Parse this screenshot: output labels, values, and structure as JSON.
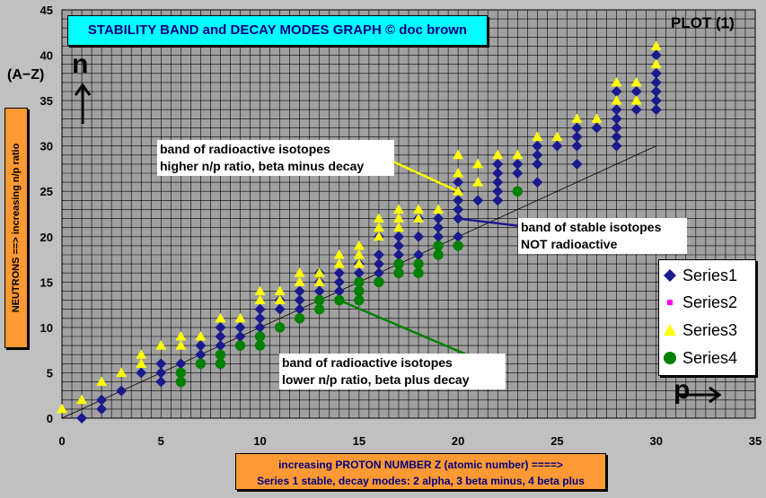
{
  "chart_data": {
    "type": "scatter",
    "title": "STABILITY BAND and DECAY MODES GRAPH  © doc brown",
    "plot_label": "PLOT (1)",
    "xlabel": [
      "increasing PROTON NUMBER Z (atomic number) ====>",
      "Series 1 stable, decay modes: 2 alpha, 3 beta minus, 4 beta plus"
    ],
    "ylabel": "NEUTRONS ==> increasing n/p ratio",
    "y_axis_symbol": "n",
    "y_axis_extra": "(A−Z)",
    "x_axis_symbol": "p",
    "xlim": [
      0,
      35
    ],
    "ylim": [
      0,
      45
    ],
    "x_ticks": [
      0,
      5,
      10,
      15,
      20,
      25,
      30,
      35
    ],
    "y_ticks": [
      0,
      5,
      10,
      15,
      20,
      25,
      30,
      35,
      40,
      45
    ],
    "grid": true,
    "legend_position": "bottom-right",
    "series": [
      {
        "name": "Series1",
        "marker": "diamond",
        "color": "#1a1a8c",
        "points": [
          [
            1,
            0
          ],
          [
            2,
            1
          ],
          [
            2,
            2
          ],
          [
            3,
            3
          ],
          [
            4,
            5
          ],
          [
            5,
            4
          ],
          [
            5,
            5
          ],
          [
            5,
            6
          ],
          [
            6,
            6
          ],
          [
            7,
            7
          ],
          [
            7,
            8
          ],
          [
            8,
            8
          ],
          [
            8,
            9
          ],
          [
            8,
            10
          ],
          [
            9,
            9
          ],
          [
            9,
            10
          ],
          [
            10,
            10
          ],
          [
            10,
            11
          ],
          [
            10,
            12
          ],
          [
            11,
            12
          ],
          [
            11,
            13
          ],
          [
            12,
            12
          ],
          [
            12,
            13
          ],
          [
            12,
            14
          ],
          [
            13,
            14
          ],
          [
            13,
            15
          ],
          [
            13,
            16
          ],
          [
            14,
            14
          ],
          [
            14,
            15
          ],
          [
            14,
            16
          ],
          [
            15,
            16
          ],
          [
            15,
            17
          ],
          [
            16,
            16
          ],
          [
            16,
            17
          ],
          [
            16,
            18
          ],
          [
            16,
            20
          ],
          [
            17,
            18
          ],
          [
            17,
            19
          ],
          [
            17,
            20
          ],
          [
            18,
            18
          ],
          [
            18,
            20
          ],
          [
            18,
            22
          ],
          [
            19,
            20
          ],
          [
            19,
            21
          ],
          [
            19,
            22
          ],
          [
            20,
            20
          ],
          [
            20,
            22
          ],
          [
            20,
            23
          ],
          [
            20,
            24
          ],
          [
            20,
            25
          ],
          [
            20,
            26
          ],
          [
            21,
            24
          ],
          [
            22,
            24
          ],
          [
            22,
            25
          ],
          [
            22,
            26
          ],
          [
            22,
            27
          ],
          [
            22,
            28
          ],
          [
            23,
            27
          ],
          [
            23,
            28
          ],
          [
            24,
            26
          ],
          [
            24,
            28
          ],
          [
            24,
            29
          ],
          [
            24,
            30
          ],
          [
            25,
            30
          ],
          [
            26,
            28
          ],
          [
            26,
            30
          ],
          [
            26,
            31
          ],
          [
            26,
            32
          ],
          [
            27,
            32
          ],
          [
            28,
            30
          ],
          [
            28,
            31
          ],
          [
            28,
            32
          ],
          [
            28,
            33
          ],
          [
            28,
            34
          ],
          [
            28,
            36
          ],
          [
            29,
            34
          ],
          [
            29,
            36
          ],
          [
            30,
            34
          ],
          [
            30,
            35
          ],
          [
            30,
            36
          ],
          [
            30,
            37
          ],
          [
            30,
            38
          ],
          [
            30,
            40
          ]
        ]
      },
      {
        "name": "Series2",
        "marker": "square",
        "color": "#ff00ff",
        "points": []
      },
      {
        "name": "Series3",
        "marker": "triangle",
        "color": "#ffff00",
        "points": [
          [
            0,
            1
          ],
          [
            1,
            2
          ],
          [
            2,
            4
          ],
          [
            3,
            5
          ],
          [
            4,
            6
          ],
          [
            4,
            7
          ],
          [
            5,
            8
          ],
          [
            6,
            8
          ],
          [
            6,
            9
          ],
          [
            7,
            9
          ],
          [
            8,
            11
          ],
          [
            9,
            11
          ],
          [
            10,
            13
          ],
          [
            10,
            14
          ],
          [
            11,
            13
          ],
          [
            11,
            14
          ],
          [
            12,
            15
          ],
          [
            12,
            16
          ],
          [
            13,
            15
          ],
          [
            13,
            16
          ],
          [
            14,
            17
          ],
          [
            14,
            18
          ],
          [
            15,
            17
          ],
          [
            15,
            18
          ],
          [
            15,
            19
          ],
          [
            16,
            20
          ],
          [
            16,
            21
          ],
          [
            16,
            22
          ],
          [
            17,
            21
          ],
          [
            17,
            22
          ],
          [
            17,
            23
          ],
          [
            18,
            22
          ],
          [
            18,
            23
          ],
          [
            19,
            23
          ],
          [
            20,
            25
          ],
          [
            20,
            27
          ],
          [
            20,
            29
          ],
          [
            21,
            26
          ],
          [
            21,
            28
          ],
          [
            22,
            29
          ],
          [
            23,
            29
          ],
          [
            24,
            31
          ],
          [
            25,
            31
          ],
          [
            26,
            33
          ],
          [
            27,
            33
          ],
          [
            28,
            35
          ],
          [
            28,
            37
          ],
          [
            29,
            35
          ],
          [
            29,
            37
          ],
          [
            30,
            39
          ],
          [
            30,
            41
          ]
        ]
      },
      {
        "name": "Series4",
        "marker": "circle",
        "color": "#008000",
        "points": [
          [
            6,
            4
          ],
          [
            6,
            5
          ],
          [
            7,
            6
          ],
          [
            8,
            6
          ],
          [
            8,
            7
          ],
          [
            9,
            8
          ],
          [
            10,
            8
          ],
          [
            10,
            9
          ],
          [
            11,
            10
          ],
          [
            12,
            11
          ],
          [
            13,
            12
          ],
          [
            13,
            13
          ],
          [
            14,
            13
          ],
          [
            15,
            13
          ],
          [
            15,
            14
          ],
          [
            15,
            15
          ],
          [
            16,
            15
          ],
          [
            17,
            16
          ],
          [
            17,
            17
          ],
          [
            18,
            16
          ],
          [
            18,
            17
          ],
          [
            19,
            18
          ],
          [
            19,
            19
          ],
          [
            20,
            19
          ],
          [
            23,
            25
          ]
        ]
      }
    ],
    "trend_line": {
      "from": [
        0,
        0
      ],
      "to": [
        30,
        30
      ]
    },
    "annotations": [
      {
        "text": [
          "band of radioactive isotopes",
          "higher n/p ratio, beta minus decay"
        ],
        "color": "#ffff00",
        "marker": "triangle",
        "marker_at": [
          15.5,
          29.5
        ],
        "points_to": [
          20,
          25
        ]
      },
      {
        "text": [
          "band of stable isotopes",
          "NOT radioactive"
        ],
        "color": "#1a1a8c",
        "marker": "diamond",
        "marker_at": [
          29.5,
          19.5
        ],
        "points_to": [
          20,
          22
        ]
      },
      {
        "text": [
          "band of radioactive isotopes",
          "lower n/p ratio, beta plus decay"
        ],
        "color": "#008000",
        "marker": "circle",
        "marker_at": [
          21.5,
          6
        ],
        "points_to": [
          14,
          13
        ]
      }
    ]
  }
}
